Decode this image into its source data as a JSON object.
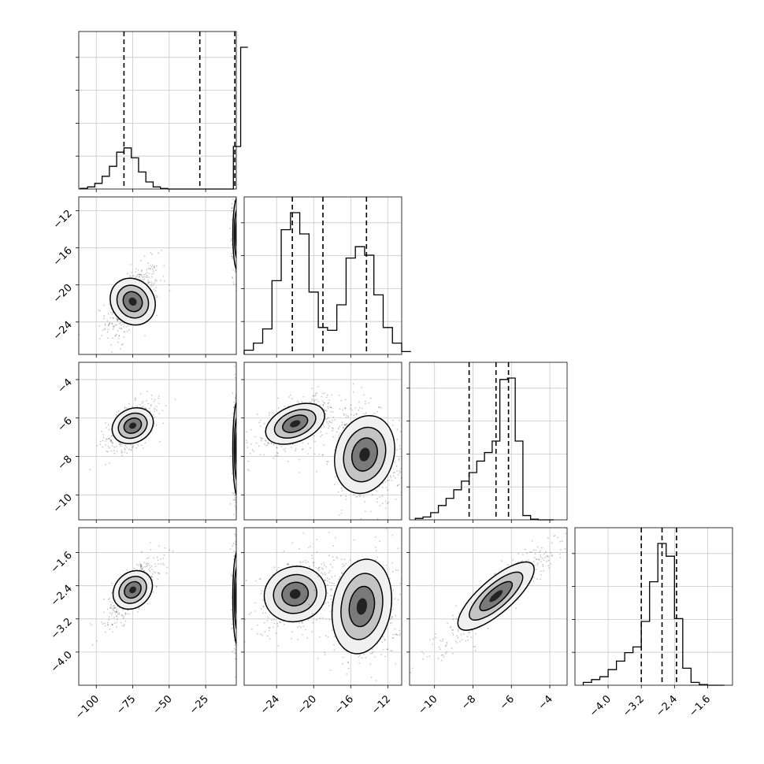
{
  "chart_data": {
    "type": "scatter",
    "title": "",
    "parameters": [
      {
        "id": "p0",
        "xlim": [
          -112,
          -4
        ],
        "ticks": [
          -100,
          -75,
          -50,
          -25
        ],
        "tick_labels": [
          "−100",
          "−75",
          "−50",
          "−25"
        ],
        "quantiles": [
          -81,
          -29,
          -5
        ]
      },
      {
        "id": "p1",
        "xlim": [
          -27.5,
          -10.5
        ],
        "ticks": [
          -24,
          -20,
          -16,
          -12
        ],
        "tick_labels": [
          "−24",
          "−20",
          "−16",
          "−12"
        ],
        "quantiles": [
          -22.3,
          -19.0,
          -14.3
        ]
      },
      {
        "id": "p2",
        "xlim": [
          -11.3,
          -3.1
        ],
        "ticks": [
          -10,
          -8,
          -6,
          -4
        ],
        "tick_labels": [
          "−10",
          "−8",
          "−6",
          "−4"
        ],
        "quantiles": [
          -8.2,
          -6.8,
          -6.15
        ]
      },
      {
        "id": "p3",
        "xlim": [
          -4.8,
          -1.0
        ],
        "ticks": [
          -4.0,
          -3.2,
          -2.4,
          -1.6
        ],
        "tick_labels": [
          "−4.0",
          "−3.2",
          "−2.4",
          "−1.6"
        ],
        "quantiles": [
          -3.2,
          -2.7,
          -2.35
        ]
      }
    ],
    "histograms": [
      {
        "param": 0,
        "bins": [
          -111,
          -106,
          -101,
          -96,
          -91,
          -86,
          -81,
          -76,
          -71,
          -66,
          -61,
          -56,
          -51,
          -46,
          -41,
          -36,
          -31,
          -26,
          -21,
          -16,
          -11,
          -6,
          -1
        ],
        "counts": [
          0.5,
          1.5,
          4,
          9,
          16,
          26,
          29,
          22,
          12,
          5,
          1.5,
          0.4,
          0,
          0,
          0,
          0,
          0,
          0,
          0,
          0,
          0,
          30,
          100
        ]
      },
      {
        "param": 1,
        "bins": [
          -27.5,
          -26.5,
          -25.5,
          -24.5,
          -23.5,
          -22.5,
          -21.5,
          -20.5,
          -19.5,
          -18.5,
          -17.5,
          -16.5,
          -15.5,
          -14.5,
          -13.5,
          -12.5,
          -11.5,
          -10.5
        ],
        "counts": [
          3,
          8,
          18,
          52,
          88,
          100,
          85,
          44,
          19,
          17,
          35,
          68,
          76,
          70,
          42,
          19,
          8,
          2
        ]
      },
      {
        "param": 2,
        "bins": [
          -11.0,
          -10.6,
          -10.2,
          -9.8,
          -9.4,
          -9.0,
          -8.6,
          -8.2,
          -7.8,
          -7.4,
          -7.0,
          -6.6,
          -6.2,
          -5.8,
          -5.4,
          -5.0,
          -4.6,
          -4.2
        ],
        "counts": [
          1,
          2,
          5,
          10,
          15,
          21,
          27,
          33,
          41,
          47,
          55,
          98,
          99,
          55,
          3,
          0.5,
          0,
          0
        ]
      },
      {
        "param": 3,
        "bins": [
          -4.6,
          -4.4,
          -4.2,
          -4.0,
          -3.8,
          -3.6,
          -3.4,
          -3.2,
          -3.0,
          -2.8,
          -2.6,
          -2.4,
          -2.2,
          -2.0,
          -1.8,
          -1.6,
          -1.4
        ],
        "counts": [
          2,
          4,
          6,
          11,
          17,
          23,
          27,
          45,
          73,
          100,
          91,
          47,
          12,
          2,
          0.5,
          0,
          0
        ]
      }
    ],
    "clusters": [
      {
        "x": 0,
        "y": 1,
        "blobs": [
          {
            "mx": -75,
            "my": -21.8,
            "sx": 7,
            "sy": 1.5,
            "r": 0.55,
            "w": 1.0
          },
          {
            "mx": -3,
            "my": -14.5,
            "sx": 1.3,
            "sy": 1.9,
            "r": 0,
            "w": 1.2
          }
        ]
      },
      {
        "x": 0,
        "y": 2,
        "blobs": [
          {
            "mx": -75,
            "my": -6.4,
            "sx": 7,
            "sy": 0.5,
            "r": 0.55,
            "w": 1.0
          },
          {
            "mx": -3,
            "my": -7.6,
            "sx": 1.3,
            "sy": 1.2,
            "r": 0,
            "w": 1.2
          }
        ]
      },
      {
        "x": 0,
        "y": 3,
        "blobs": [
          {
            "mx": -75,
            "my": -2.5,
            "sx": 7,
            "sy": 0.3,
            "r": 0.75,
            "w": 1.0
          },
          {
            "mx": -3,
            "my": -2.7,
            "sx": 1.3,
            "sy": 0.55,
            "r": 0,
            "w": 1.2
          }
        ]
      },
      {
        "x": 1,
        "y": 2,
        "blobs": [
          {
            "mx": -22,
            "my": -6.3,
            "sx": 1.6,
            "sy": 0.55,
            "r": 0.6,
            "w": 1.0
          },
          {
            "mx": -14.5,
            "my": -7.9,
            "sx": 1.5,
            "sy": 1.0,
            "r": -0.2,
            "w": 1.0
          }
        ]
      },
      {
        "x": 1,
        "y": 3,
        "blobs": [
          {
            "mx": -22,
            "my": -2.6,
            "sx": 1.6,
            "sy": 0.33,
            "r": 0.3,
            "w": 1.0
          },
          {
            "mx": -14.8,
            "my": -2.9,
            "sx": 1.5,
            "sy": 0.55,
            "r": -0.1,
            "w": 1.0
          }
        ]
      },
      {
        "x": 2,
        "y": 3,
        "blobs": [
          {
            "mx": -6.8,
            "my": -2.65,
            "sx": 1.2,
            "sy": 0.52,
            "r": 0.93,
            "w": 1.0
          }
        ]
      }
    ],
    "grid": true,
    "quantile_lines": "dashed"
  }
}
